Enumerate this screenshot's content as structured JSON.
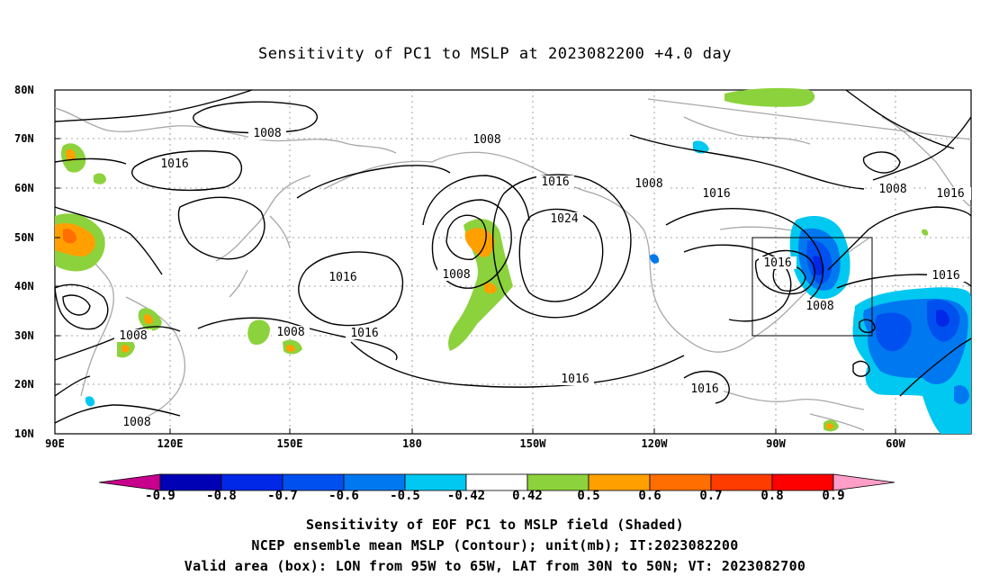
{
  "title": "Sensitivity of PC1 to MSLP at 2023082200 +4.0 day",
  "lat_labels": [
    "80N",
    "70N",
    "60N",
    "50N",
    "40N",
    "30N",
    "20N",
    "10N"
  ],
  "lon_labels": [
    "90E",
    "120E",
    "150E",
    "180",
    "150W",
    "120W",
    "90W",
    "60W"
  ],
  "contour_labels": [
    "1008",
    "1016",
    "1008",
    "1008",
    "1016",
    "1024",
    "1008",
    "1016",
    "1008",
    "1016",
    "1016",
    "1008",
    "1016",
    "1016",
    "1008",
    "1016",
    "1016",
    "1008",
    "1008",
    "1016",
    "1008"
  ],
  "colorbar": {
    "labels": [
      "-0.9",
      "-0.8",
      "-0.7",
      "-0.6",
      "-0.5",
      "-0.42",
      "0.42",
      "0.5",
      "0.6",
      "0.7",
      "0.8",
      "0.9"
    ],
    "colors": [
      "#c8008c",
      "#0000b4",
      "#0028e6",
      "#0050f0",
      "#0078f0",
      "#00c8f0",
      "#ffffff",
      "#8cd23c",
      "#ffa000",
      "#ff6e00",
      "#ff3c00",
      "#ff0000",
      "#ff9ec8"
    ]
  },
  "captions": [
    "Sensitivity of EOF PC1 to MSLP field (Shaded)",
    "NCEP ensemble mean MSLP (Contour); unit(mb); IT:2023082200",
    "Valid area (box): LON from 95W to 65W, LAT from 30N to 50N; VT: 2023082700"
  ]
}
